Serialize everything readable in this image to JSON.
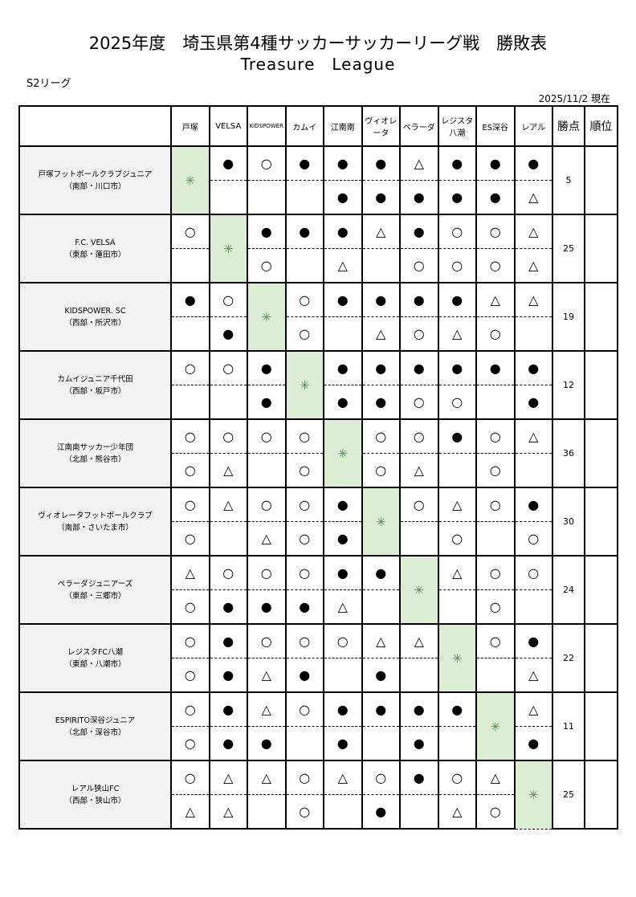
{
  "title": "2025年度　埼玉県第4種サッカーサッカーリーグ戦　勝敗表",
  "subtitle": "Treasure　League",
  "league": "S2リーグ",
  "as_of": "2025/11/2 現在",
  "columns": [
    "戸塚",
    "VELSA",
    "KIDSPOWER",
    "カムイ",
    "江南南",
    "ヴィオレータ",
    "ペラーダ",
    "レジスタ八潮",
    "ES深谷",
    "レアル"
  ],
  "points_header": "勝点",
  "rank_header": "順位",
  "diag_mark": "✳",
  "legend_colors": {
    "diagonal": "#dbeed3",
    "name_bg": "#f2f2f2"
  },
  "teams": [
    {
      "name": "戸塚フットボールクラブジュニア",
      "area": "（南部・川口市）",
      "points": "5",
      "rank": "",
      "top": [
        "",
        "●",
        "○",
        "●",
        "●",
        "●",
        "△",
        "●",
        "●",
        "●"
      ],
      "bot": [
        "",
        "",
        "",
        "",
        "●",
        "●",
        "●",
        "●",
        "●",
        "△"
      ]
    },
    {
      "name": "F.C. VELSA",
      "area": "（東部・蓮田市）",
      "points": "25",
      "rank": "",
      "top": [
        "○",
        "",
        "●",
        "●",
        "●",
        "△",
        "●",
        "○",
        "○",
        "△"
      ],
      "bot": [
        "",
        "",
        "○",
        "",
        "△",
        "",
        "○",
        "○",
        "○",
        "△"
      ]
    },
    {
      "name": "KIDSPOWER.  SC",
      "area": "（西部・所沢市）",
      "points": "19",
      "rank": "",
      "top": [
        "●",
        "○",
        "",
        "○",
        "●",
        "●",
        "●",
        "●",
        "△",
        "△"
      ],
      "bot": [
        "",
        "●",
        "",
        "○",
        "",
        "△",
        "○",
        "△",
        "○",
        ""
      ]
    },
    {
      "name": "カムイジュニア千代田",
      "area": "（西部・坂戸市）",
      "points": "12",
      "rank": "",
      "top": [
        "○",
        "○",
        "●",
        "",
        "●",
        "●",
        "●",
        "●",
        "●",
        "●"
      ],
      "bot": [
        "",
        "",
        "●",
        "",
        "●",
        "●",
        "○",
        "○",
        "",
        "●"
      ]
    },
    {
      "name": "江南南サッカー少年団",
      "area": "（北部・熊谷市）",
      "points": "36",
      "rank": "",
      "top": [
        "○",
        "○",
        "○",
        "○",
        "",
        "○",
        "○",
        "●",
        "○",
        "△"
      ],
      "bot": [
        "○",
        "△",
        "",
        "○",
        "",
        "○",
        "△",
        "",
        "○",
        ""
      ]
    },
    {
      "name": "ヴィオレータフットボールクラブ",
      "area": "（南部・さいたま市）",
      "points": "30",
      "rank": "",
      "top": [
        "○",
        "△",
        "○",
        "○",
        "●",
        "",
        "○",
        "△",
        "○",
        "●"
      ],
      "bot": [
        "○",
        "",
        "△",
        "○",
        "●",
        "",
        "",
        "○",
        "",
        "○"
      ]
    },
    {
      "name": "ペラーダジュニアーズ",
      "area": "（東部・三郷市）",
      "points": "24",
      "rank": "",
      "top": [
        "△",
        "○",
        "○",
        "○",
        "●",
        "●",
        "",
        "△",
        "○",
        "○"
      ],
      "bot": [
        "○",
        "●",
        "●",
        "●",
        "△",
        "",
        "",
        "",
        "○",
        ""
      ]
    },
    {
      "name": "レジスタFC八潮",
      "area": "（東部・八潮市）",
      "points": "22",
      "rank": "",
      "top": [
        "○",
        "●",
        "○",
        "○",
        "○",
        "△",
        "△",
        "",
        "○",
        "●"
      ],
      "bot": [
        "○",
        "●",
        "△",
        "●",
        "",
        "●",
        "",
        "",
        "",
        "△"
      ]
    },
    {
      "name": "ESPIRITO深谷ジュニア",
      "area": "（北部・深谷市）",
      "points": "11",
      "rank": "",
      "top": [
        "○",
        "●",
        "△",
        "○",
        "●",
        "●",
        "●",
        "●",
        "",
        "△"
      ],
      "bot": [
        "○",
        "●",
        "●",
        "",
        "●",
        "",
        "●",
        "",
        "",
        "●"
      ]
    },
    {
      "name": "レアル狭山FC",
      "area": "（西部・狭山市）",
      "points": "25",
      "rank": "",
      "top": [
        "○",
        "△",
        "△",
        "○",
        "△",
        "○",
        "●",
        "○",
        "△",
        ""
      ],
      "bot": [
        "△",
        "△",
        "",
        "○",
        "",
        "●",
        "",
        "△",
        "○",
        ""
      ]
    }
  ]
}
